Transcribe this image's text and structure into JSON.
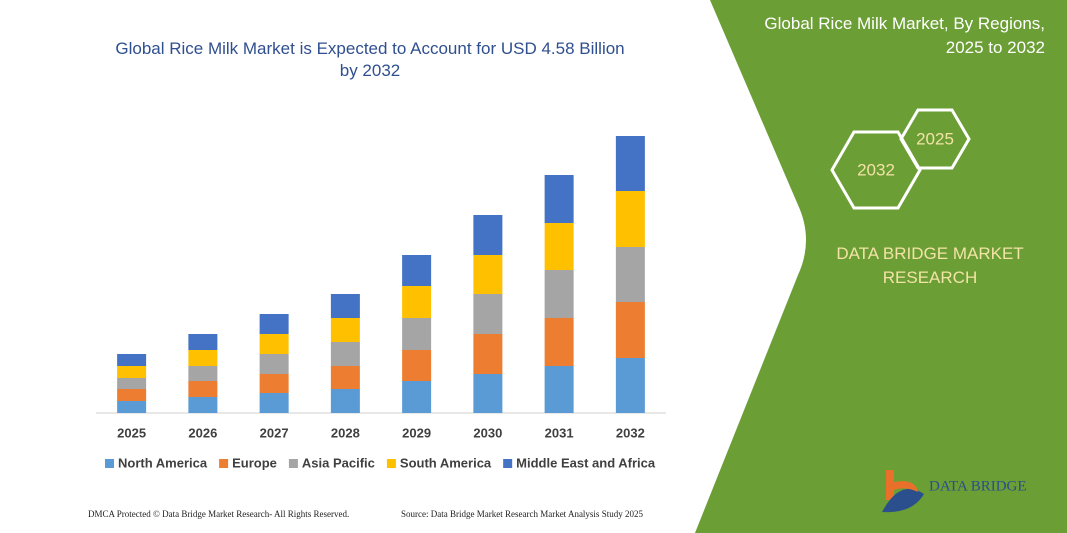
{
  "chart_data": {
    "type": "bar",
    "stacked": true,
    "title": "Global Rice Milk Market is Expected to Account for USD 4.58 Billion by 2032",
    "categories": [
      "2025",
      "2026",
      "2027",
      "2028",
      "2029",
      "2030",
      "2031",
      "2032"
    ],
    "series": [
      {
        "name": "North America",
        "color": "#5b9bd5",
        "values": [
          12,
          16,
          20,
          24,
          32,
          39,
          47,
          55
        ]
      },
      {
        "name": "Europe",
        "color": "#ed7d31",
        "values": [
          12,
          16,
          19,
          23,
          31,
          40,
          48,
          56
        ]
      },
      {
        "name": "Asia Pacific",
        "color": "#a5a5a5",
        "values": [
          11,
          15,
          20,
          24,
          32,
          40,
          48,
          55
        ]
      },
      {
        "name": "South America",
        "color": "#ffc000",
        "values": [
          12,
          16,
          20,
          24,
          32,
          39,
          47,
          56
        ]
      },
      {
        "name": "Middle East and Africa",
        "color": "#4472c4",
        "values": [
          12,
          16,
          20,
          24,
          31,
          40,
          48,
          55
        ]
      }
    ],
    "ylim": [
      0,
      300
    ]
  },
  "panel": {
    "title": "Global Rice Milk Market, By Regions, 2025 to 2032",
    "hex_large": "2032",
    "hex_small": "2025",
    "brand": "DATA BRIDGE MARKET RESEARCH"
  },
  "footer": {
    "left": "DMCA Protected © Data Bridge Market Research- All Rights Reserved.",
    "right": "Source: Data Bridge Market Research Market Analysis Study 2025"
  },
  "logo": {
    "name": "DATA BRIDGE"
  }
}
